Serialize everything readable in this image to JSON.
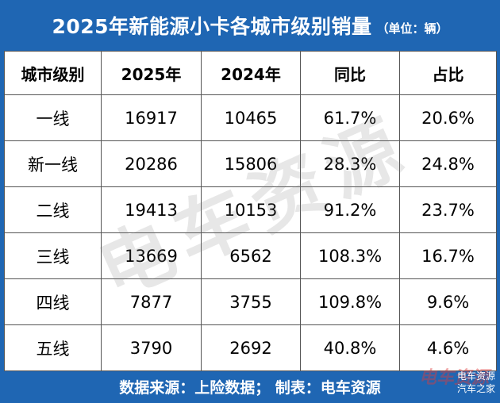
{
  "header": {
    "title": "2025年新能源小卡各城市级别销量",
    "unit": "（单位：辆）"
  },
  "table": {
    "columns": [
      "城市级别",
      "2025年",
      "2024年",
      "同比",
      "占比"
    ],
    "rows": [
      [
        "一线",
        "16917",
        "10465",
        "61.7%",
        "20.6%"
      ],
      [
        "新一线",
        "20286",
        "15806",
        "28.3%",
        "24.8%"
      ],
      [
        "二线",
        "19413",
        "10153",
        "91.2%",
        "23.7%"
      ],
      [
        "三线",
        "13669",
        "6562",
        "108.3%",
        "16.7%"
      ],
      [
        "四线",
        "7877",
        "3755",
        "109.8%",
        "9.6%"
      ],
      [
        "五线",
        "3790",
        "2692",
        "40.8%",
        "4.6%"
      ]
    ]
  },
  "footer": {
    "source": "数据来源：上险数据；  制表：电车资源"
  },
  "watermark": "电车资源",
  "corner_logo": {
    "ghost": "电车资源",
    "line1": "电车资源",
    "line2": "汽车之家"
  },
  "colors": {
    "brand_blue": "#1f66b3",
    "border": "#555555"
  }
}
